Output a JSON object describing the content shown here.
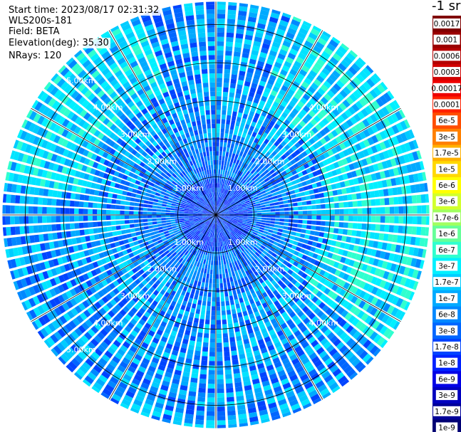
{
  "info": {
    "start_time": "Start time: 2023/08/17 02:31:32",
    "instrument": "WLS200s-181",
    "field": "Field: BETA",
    "elevation": "Elevation(deg): 35.30",
    "nrays": "NRays: 120"
  },
  "colorbar": {
    "unit": "-1 sr",
    "labels": [
      "0.0017",
      "0.001",
      "0.0006",
      "0.0003",
      "0.00017",
      "0.0001",
      "6e-5",
      "3e-5",
      "1.7e-5",
      "1e-5",
      "6e-6",
      "3e-6",
      "1.7e-6",
      "1e-6",
      "6e-7",
      "3e-7",
      "1.7e-7",
      "1e-7",
      "6e-8",
      "3e-8",
      "1.7e-8",
      "1e-8",
      "6e-9",
      "3e-9",
      "1.7e-9",
      "1e-9"
    ],
    "colors": [
      "#800000",
      "#9a0000",
      "#b40000",
      "#d00000",
      "#ee0000",
      "#ff2000",
      "#ff4d00",
      "#ff8000",
      "#ffb000",
      "#ffd800",
      "#ffff00",
      "#d2ff2d",
      "#a0ff60",
      "#66ff99",
      "#30ffcf",
      "#00f0ff",
      "#00ccff",
      "#00aaff",
      "#0088ff",
      "#0066ff",
      "#0044ff",
      "#0022ff",
      "#0000e6",
      "#0000bf",
      "#000099",
      "#000073"
    ]
  },
  "chart_data": {
    "type": "heatmap",
    "projection": "polar (PPI scan)",
    "field": "BETA",
    "elevation_deg": 35.3,
    "n_rays": 120,
    "range_ring_labels": [
      "1.00km",
      "2.00km",
      "3.00km",
      "4.00km",
      "5.00km"
    ],
    "range_rings_km": [
      1,
      2,
      3,
      4,
      5
    ],
    "max_range_km": 5.6,
    "radial_lines_deg": [
      0,
      30,
      60,
      90,
      120,
      150,
      180,
      210,
      240,
      270,
      300,
      330
    ],
    "dominant_value_range": [
      1e-08,
      1.7e-07
    ],
    "near_field_value": 1e-08,
    "enhanced_sectors": [
      {
        "azimuth_from_deg": 20,
        "azimuth_to_deg": 130,
        "range_from_km": 3.0,
        "range_to_km": 5.6,
        "value": 1e-07
      },
      {
        "azimuth_from_deg": 280,
        "azimuth_to_deg": 340,
        "range_from_km": 3.5,
        "range_to_km": 5.6,
        "value": 6e-08
      }
    ]
  }
}
